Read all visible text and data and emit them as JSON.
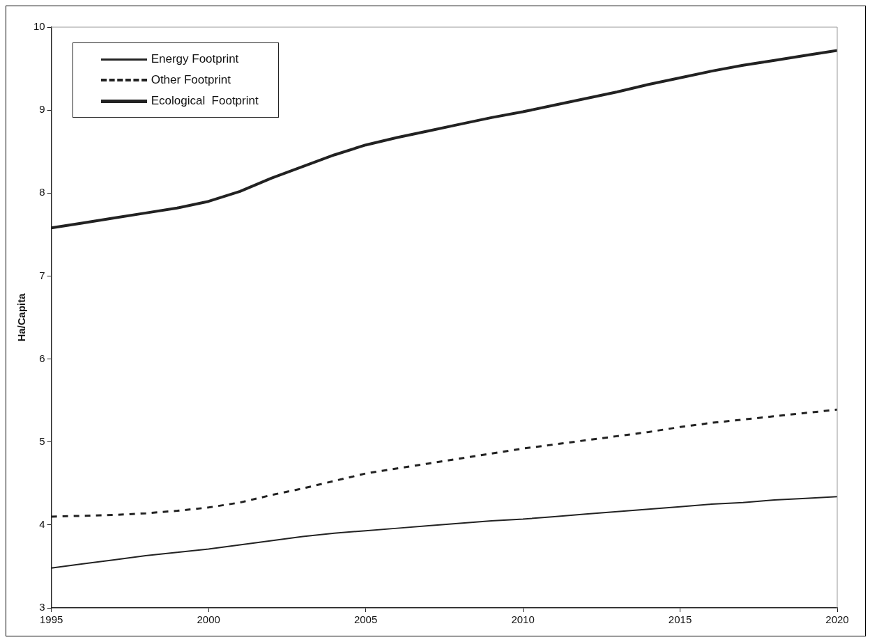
{
  "chart_data": {
    "type": "line",
    "ylabel": "Ha/Capita",
    "x": [
      1995,
      1996,
      1997,
      1998,
      1999,
      2000,
      2001,
      2002,
      2003,
      2004,
      2005,
      2006,
      2007,
      2008,
      2009,
      2010,
      2011,
      2012,
      2013,
      2014,
      2015,
      2016,
      2017,
      2018,
      2019,
      2020
    ],
    "series": [
      {
        "name": "Energy Footprint",
        "color": "#222222",
        "line_style": "solid",
        "values": [
          3.48,
          3.53,
          3.58,
          3.63,
          3.67,
          3.71,
          3.76,
          3.81,
          3.86,
          3.9,
          3.93,
          3.96,
          3.99,
          4.02,
          4.05,
          4.07,
          4.1,
          4.13,
          4.16,
          4.19,
          4.22,
          4.25,
          4.27,
          4.3,
          4.32,
          4.34
        ]
      },
      {
        "name": "Other Footprint",
        "color": "#222222",
        "line_style": "dashed",
        "values": [
          4.1,
          4.11,
          4.12,
          4.14,
          4.17,
          4.21,
          4.27,
          4.36,
          4.44,
          4.53,
          4.62,
          4.68,
          4.74,
          4.8,
          4.86,
          4.92,
          4.97,
          5.02,
          5.07,
          5.12,
          5.18,
          5.23,
          5.27,
          5.31,
          5.35,
          5.39
        ]
      },
      {
        "name": "Ecological  Footprint",
        "color": "#222222",
        "line_style": "solid",
        "values": [
          7.58,
          7.64,
          7.7,
          7.76,
          7.82,
          7.9,
          8.02,
          8.18,
          8.32,
          8.46,
          8.58,
          8.67,
          8.75,
          8.83,
          8.91,
          8.98,
          9.06,
          9.14,
          9.22,
          9.31,
          9.39,
          9.47,
          9.54,
          9.6,
          9.66,
          9.72
        ]
      }
    ],
    "xlim": [
      1995,
      2020
    ],
    "xticks": [
      1995,
      2000,
      2005,
      2010,
      2015,
      2020
    ],
    "ylim": [
      3,
      10
    ],
    "yticks": [
      3,
      4,
      5,
      6,
      7,
      8,
      9,
      10
    ],
    "grid": false,
    "legend": "top left",
    "marker": "none"
  }
}
